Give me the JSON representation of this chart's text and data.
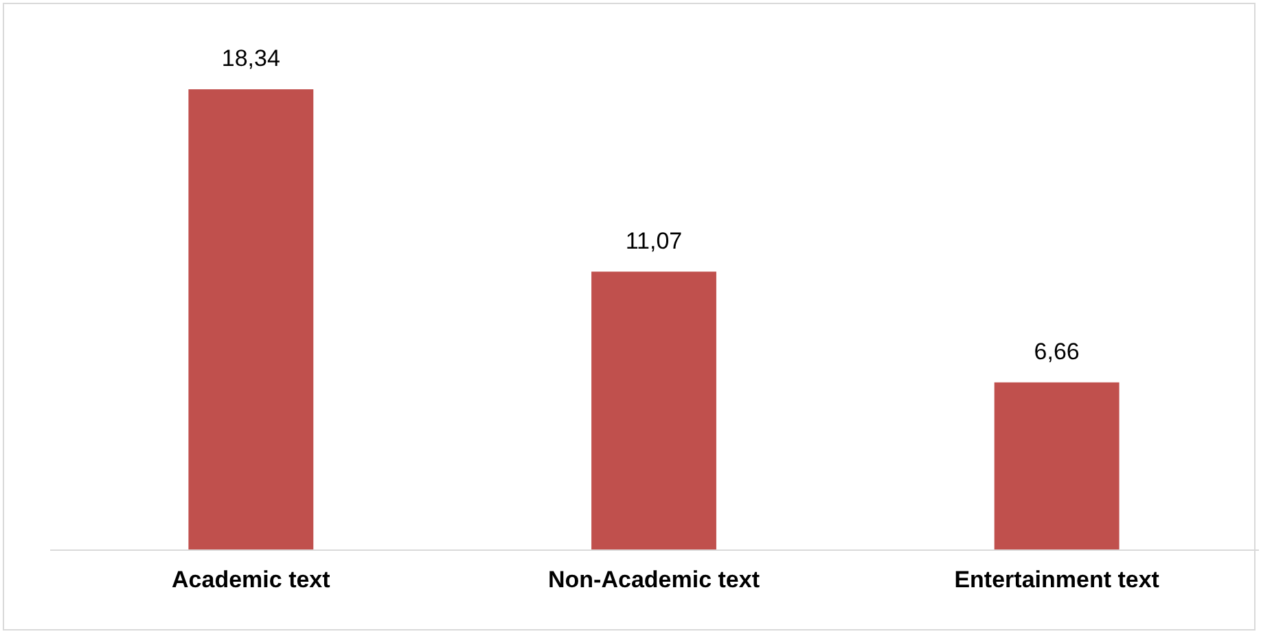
{
  "chart_data": {
    "type": "bar",
    "categories": [
      "Academic text",
      "Non-Academic text",
      "Entertainment text"
    ],
    "values": [
      18.34,
      11.07,
      6.66
    ],
    "value_labels": [
      "18,34",
      "11,07",
      "6,66"
    ],
    "color": "#c0504d"
  }
}
